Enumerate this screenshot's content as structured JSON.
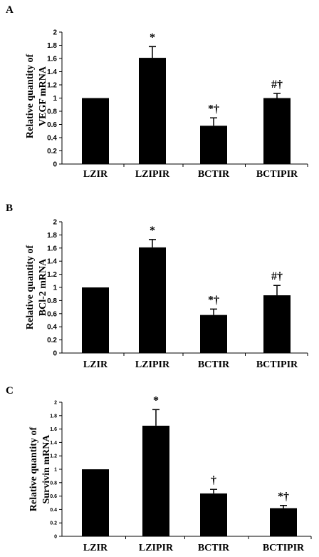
{
  "chart_data": [
    {
      "type": "bar",
      "panel": "A",
      "ylabel": [
        "Relative quantity of",
        "VEGF mRNA"
      ],
      "categories": [
        "LZIR",
        "LZIPIR",
        "BCTIR",
        "BCTIPIR"
      ],
      "values": [
        1.0,
        1.61,
        0.58,
        1.0
      ],
      "errors": [
        0.0,
        0.17,
        0.12,
        0.07
      ],
      "annotations": [
        "",
        "*",
        "*†",
        "#†"
      ],
      "ylim": [
        0,
        2
      ],
      "yticks": [
        "0",
        "0.2",
        "0.4",
        "0.6",
        "0.8",
        "1",
        "1.2",
        "1.4",
        "1.6",
        "1.8",
        "2"
      ],
      "bar_color": "#000000"
    },
    {
      "type": "bar",
      "panel": "B",
      "ylabel": [
        "Relative quantity of",
        "BCl-2 mRNA"
      ],
      "categories": [
        "LZIR",
        "LZIPIR",
        "BCTIR",
        "BCTIPIR"
      ],
      "values": [
        1.0,
        1.61,
        0.58,
        0.88
      ],
      "errors": [
        0.0,
        0.12,
        0.09,
        0.15
      ],
      "annotations": [
        "",
        "*",
        "*†",
        "#†"
      ],
      "ylim": [
        0,
        2
      ],
      "yticks": [
        "0",
        "0.2",
        "0.4",
        "0.6",
        "0.8",
        "1",
        "1.2",
        "1.4",
        "1.6",
        "1.8",
        "2"
      ],
      "bar_color": "#000000"
    },
    {
      "type": "bar",
      "panel": "C",
      "ylabel": [
        "Relative quantity of",
        "Survivin mRNA"
      ],
      "categories": [
        "LZIR",
        "LZIPIR",
        "BCTIR",
        "BCTIPIR"
      ],
      "values": [
        1.0,
        1.65,
        0.64,
        0.42
      ],
      "errors": [
        0.0,
        0.24,
        0.06,
        0.04
      ],
      "annotations": [
        "",
        "*",
        "†",
        "*†"
      ],
      "ylim": [
        0,
        2
      ],
      "yticks": [
        "0",
        "0.2",
        "0.4",
        "0.6",
        "0.8",
        "1",
        "1.2",
        "1.4",
        "1.6",
        "1.8",
        "2"
      ],
      "bar_color": "#000000"
    }
  ]
}
